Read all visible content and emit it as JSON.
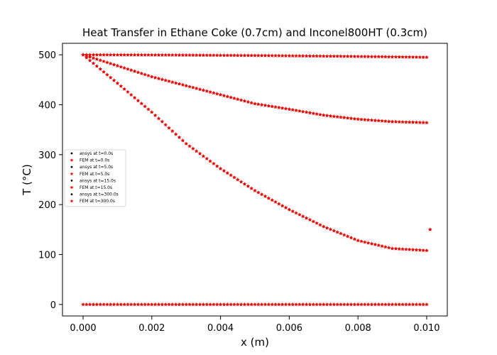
{
  "chart_data": {
    "type": "scatter",
    "title": "Heat Transfer in Ethane Coke (0.7cm) and Inconel800HT (0.3cm)",
    "xlabel": "x (m)",
    "ylabel": "T (°C)",
    "xlim": [
      -0.0006,
      0.0106
    ],
    "ylim": [
      -23,
      523
    ],
    "xticks": [
      0.0,
      0.002,
      0.004,
      0.006,
      0.008,
      0.01
    ],
    "xtick_labels": [
      "0.000",
      "0.002",
      "0.004",
      "0.006",
      "0.008",
      "0.010"
    ],
    "yticks": [
      0,
      100,
      200,
      300,
      400,
      500
    ],
    "ytick_labels": [
      "0",
      "100",
      "200",
      "300",
      "400",
      "500"
    ],
    "grid": false,
    "legend_position": "center-left",
    "colors": {
      "ansys": "#000000",
      "fem": "#ff0000"
    },
    "series": [
      {
        "name": "ansys at t=0.0s",
        "method": "ansys",
        "time_s": 0.0,
        "x": [
          0.0,
          0.01
        ],
        "y": [
          0,
          0
        ],
        "extra_points": []
      },
      {
        "name": "FEM at t=0.0s",
        "method": "fem",
        "time_s": 0.0,
        "x": [
          0.0,
          0.01
        ],
        "y": [
          0,
          0
        ],
        "extra_points": []
      },
      {
        "name": "ansys at t=5.0s",
        "method": "ansys",
        "time_s": 5.0,
        "x": [
          0.0,
          0.0025,
          0.005,
          0.0075,
          0.01
        ],
        "y": [
          500,
          499.5,
          498.5,
          497,
          495
        ],
        "extra_points": []
      },
      {
        "name": "FEM at t=5.0s",
        "method": "fem",
        "time_s": 5.0,
        "x": [
          0.0,
          0.0025,
          0.005,
          0.0075,
          0.01
        ],
        "y": [
          500,
          499.5,
          498.5,
          497,
          495
        ],
        "extra_points": []
      },
      {
        "name": "ansys at t=15.0s",
        "method": "ansys",
        "time_s": 15.0,
        "x": [
          0.0,
          0.001,
          0.002,
          0.003,
          0.004,
          0.005,
          0.006,
          0.007,
          0.008,
          0.009,
          0.01
        ],
        "y": [
          500,
          478,
          456,
          438,
          420,
          402,
          391,
          379,
          371,
          366,
          364
        ],
        "extra_points": []
      },
      {
        "name": "FEM at t=15.0s",
        "method": "fem",
        "time_s": 15.0,
        "x": [
          0.0,
          0.001,
          0.002,
          0.003,
          0.004,
          0.005,
          0.006,
          0.007,
          0.008,
          0.009,
          0.01
        ],
        "y": [
          500,
          478,
          456,
          438,
          420,
          402,
          391,
          379,
          371,
          366,
          364
        ],
        "extra_points": []
      },
      {
        "name": "ansys at t=300.0s",
        "method": "ansys",
        "time_s": 300.0,
        "x": [
          0.0,
          0.001,
          0.002,
          0.003,
          0.004,
          0.005,
          0.006,
          0.007,
          0.008,
          0.009,
          0.01
        ],
        "y": [
          500,
          443,
          385,
          322,
          272,
          228,
          190,
          156,
          128,
          112,
          108
        ],
        "extra_points": [
          [
            0.0101,
            150
          ]
        ]
      },
      {
        "name": "FEM at t=300.0s",
        "method": "fem",
        "time_s": 300.0,
        "x": [
          0.0,
          0.001,
          0.002,
          0.003,
          0.004,
          0.005,
          0.006,
          0.007,
          0.008,
          0.009,
          0.01
        ],
        "y": [
          500,
          443,
          385,
          322,
          272,
          228,
          190,
          156,
          128,
          112,
          108
        ],
        "extra_points": [
          [
            0.0101,
            150
          ]
        ]
      }
    ]
  }
}
